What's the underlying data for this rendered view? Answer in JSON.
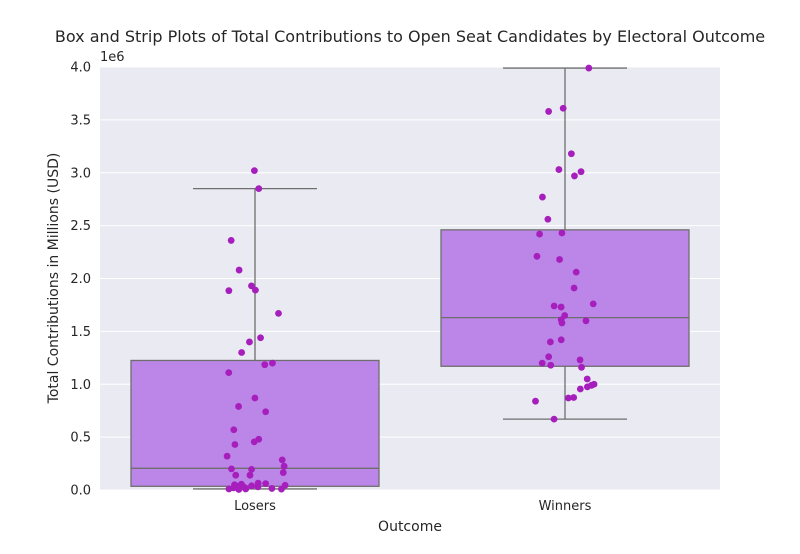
{
  "chart_data": {
    "type": "box",
    "title": "Box and Strip Plots of Total Contributions to Open Seat Candidates by Electoral Outcome",
    "xlabel": "Outcome",
    "ylabel": "Total Contributions in Millions (USD)",
    "y_offset_label": "1e6",
    "ylim": [
      0,
      4000000
    ],
    "yticks": [
      0,
      500000,
      1000000,
      1500000,
      2000000,
      2500000,
      3000000,
      3500000,
      4000000
    ],
    "ytick_labels": [
      "0.0",
      "0.5",
      "1.0",
      "1.5",
      "2.0",
      "2.5",
      "3.0",
      "3.5",
      "4.0"
    ],
    "categories": [
      "Losers",
      "Winners"
    ],
    "grid": true,
    "colors": {
      "box_fill": "#bc85e8",
      "box_edge": "#6e6e6e",
      "points": "#a61fbd",
      "background": "#eaeaf2",
      "grid": "#ffffff"
    },
    "boxes": [
      {
        "category": "Losers",
        "whisker_low": 10000,
        "q1": 35000,
        "median": 205000,
        "q3": 1225000,
        "whisker_high": 2850000
      },
      {
        "category": "Winners",
        "whisker_low": 670000,
        "q1": 1170000,
        "median": 1630000,
        "q3": 2460000,
        "whisker_high": 3990000
      }
    ],
    "points": [
      {
        "category": "Losers",
        "values": [
          3020000,
          2850000,
          2360000,
          2080000,
          1930000,
          1890000,
          1885000,
          1670000,
          1440000,
          1400000,
          1300000,
          1200000,
          1185000,
          1110000,
          870000,
          790000,
          740000,
          570000,
          480000,
          455000,
          430000,
          320000,
          285000,
          225000,
          200000,
          195000,
          165000,
          140000,
          140000,
          65000,
          60000,
          55000,
          50000,
          45000,
          40000,
          35000,
          30000,
          25000,
          20000,
          15000,
          15000,
          10000,
          10000,
          8000,
          5000
        ]
      },
      {
        "category": "Winners",
        "values": [
          3990000,
          3610000,
          3580000,
          3180000,
          3030000,
          3010000,
          2970000,
          2770000,
          2560000,
          2430000,
          2420000,
          2210000,
          2180000,
          2060000,
          1910000,
          1760000,
          1740000,
          1730000,
          1650000,
          1610000,
          1600000,
          1580000,
          1420000,
          1400000,
          1260000,
          1230000,
          1200000,
          1180000,
          1160000,
          1050000,
          1000000,
          990000,
          975000,
          955000,
          875000,
          870000,
          840000,
          670000
        ]
      }
    ]
  }
}
